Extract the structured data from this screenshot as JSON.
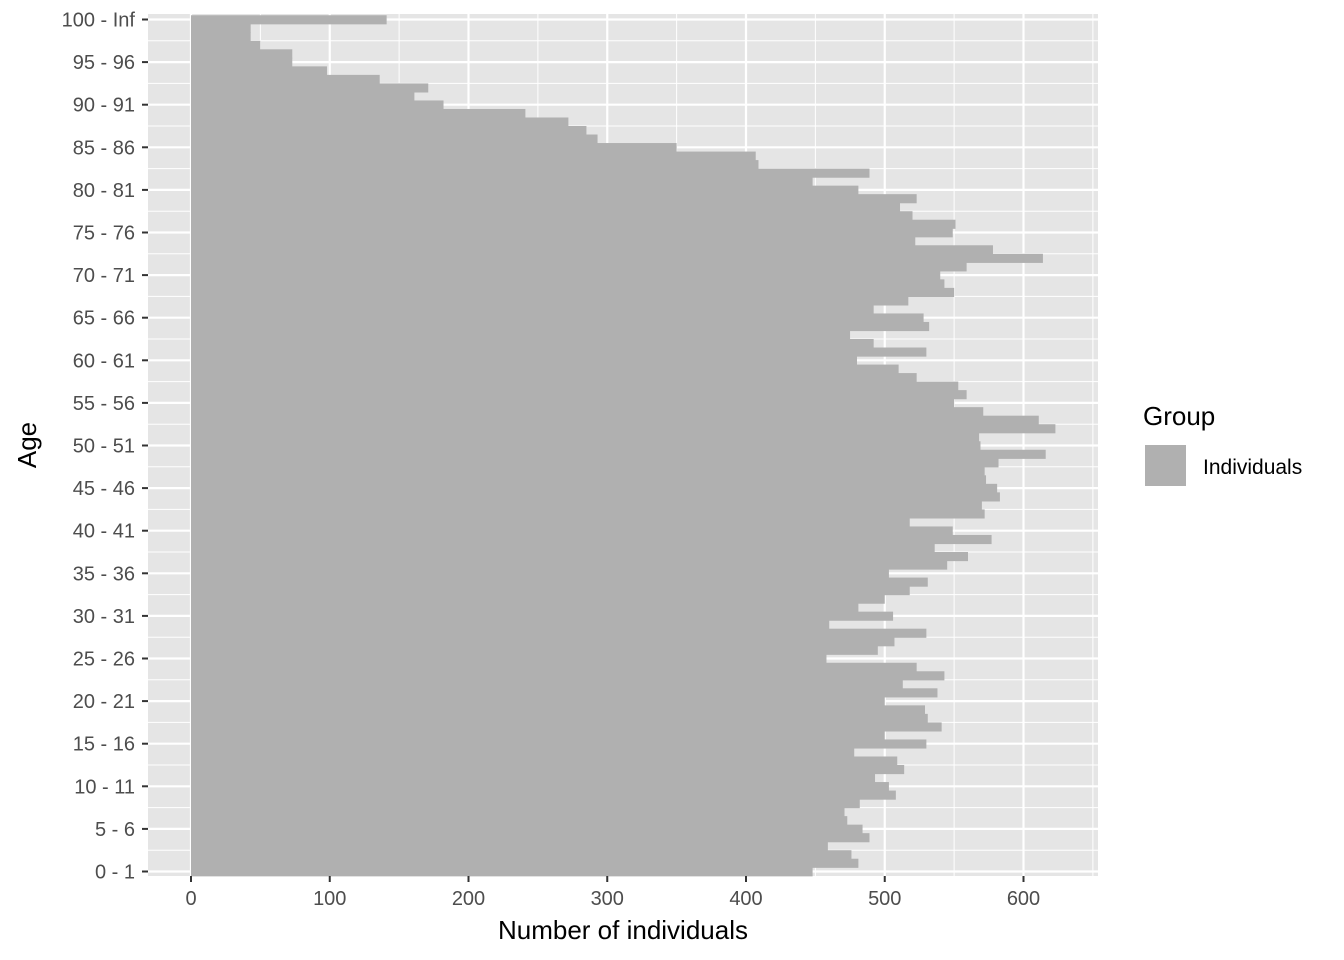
{
  "chart_data": {
    "type": "bar",
    "orientation": "horizontal",
    "xlabel": "Number of individuals",
    "ylabel": "Age",
    "xlim": [
      -30,
      650
    ],
    "xticks": [
      0,
      100,
      200,
      300,
      400,
      500,
      600
    ],
    "grid": true,
    "legend": {
      "title": "Group",
      "placement": "right"
    },
    "colors": {
      "panel": "#e5e5e5",
      "grid": "#ffffff",
      "bar": "#b0b0b0",
      "text": "#4d4d4d"
    },
    "categories": [
      "0 - 1",
      "1 - 2",
      "2 - 3",
      "3 - 4",
      "4 - 5",
      "5 - 6",
      "6 - 7",
      "7 - 8",
      "8 - 9",
      "9 - 10",
      "10 - 11",
      "11 - 12",
      "12 - 13",
      "13 - 14",
      "14 - 15",
      "15 - 16",
      "16 - 17",
      "17 - 18",
      "18 - 19",
      "19 - 20",
      "20 - 21",
      "21 - 22",
      "22 - 23",
      "23 - 24",
      "24 - 25",
      "25 - 26",
      "26 - 27",
      "27 - 28",
      "28 - 29",
      "29 - 30",
      "30 - 31",
      "31 - 32",
      "32 - 33",
      "33 - 34",
      "34 - 35",
      "35 - 36",
      "36 - 37",
      "37 - 38",
      "38 - 39",
      "39 - 40",
      "40 - 41",
      "41 - 42",
      "42 - 43",
      "43 - 44",
      "44 - 45",
      "45 - 46",
      "46 - 47",
      "47 - 48",
      "48 - 49",
      "49 - 50",
      "50 - 51",
      "51 - 52",
      "52 - 53",
      "53 - 54",
      "54 - 55",
      "55 - 56",
      "56 - 57",
      "57 - 58",
      "58 - 59",
      "59 - 60",
      "60 - 61",
      "61 - 62",
      "62 - 63",
      "63 - 64",
      "64 - 65",
      "65 - 66",
      "66 - 67",
      "67 - 68",
      "68 - 69",
      "69 - 70",
      "70 - 71",
      "71 - 72",
      "72 - 73",
      "73 - 74",
      "74 - 75",
      "75 - 76",
      "76 - 77",
      "77 - 78",
      "78 - 79",
      "79 - 80",
      "80 - 81",
      "81 - 82",
      "82 - 83",
      "83 - 84",
      "84 - 85",
      "85 - 86",
      "86 - 87",
      "87 - 88",
      "88 - 89",
      "89 - 90",
      "90 - 91",
      "91 - 92",
      "92 - 93",
      "93 - 94",
      "94 - 95",
      "95 - 96",
      "96 - 97",
      "97 - 98",
      "98 - 99",
      "99 - 100",
      "100 - Inf"
    ],
    "tick_every": 5,
    "series": [
      {
        "name": "Individuals",
        "values": [
          448,
          481,
          476,
          459,
          489,
          484,
          473,
          471,
          482,
          508,
          503,
          493,
          514,
          509,
          478,
          530,
          500,
          541,
          531,
          529,
          500,
          538,
          513,
          543,
          523,
          458,
          495,
          507,
          530,
          460,
          506,
          481,
          500,
          518,
          531,
          503,
          545,
          560,
          536,
          577,
          549,
          518,
          572,
          570,
          583,
          581,
          573,
          572,
          582,
          616,
          569,
          568,
          623,
          611,
          571,
          550,
          559,
          553,
          523,
          510,
          480,
          530,
          492,
          475,
          532,
          528,
          492,
          517,
          550,
          543,
          540,
          559,
          614,
          578,
          522,
          549,
          551,
          520,
          511,
          523,
          481,
          448,
          489,
          409,
          407,
          350,
          293,
          285,
          272,
          241,
          182,
          161,
          171,
          136,
          98,
          73,
          73,
          50,
          43,
          43,
          141
        ]
      }
    ]
  }
}
